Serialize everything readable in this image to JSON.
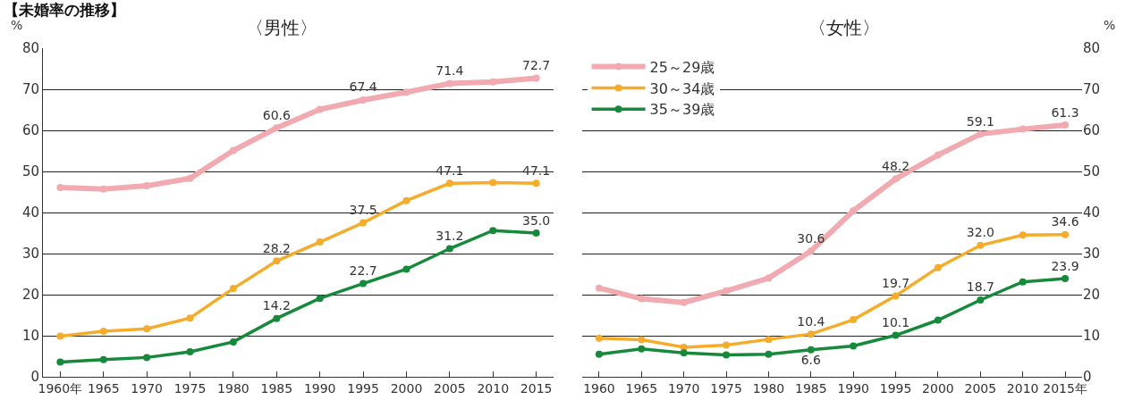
{
  "chart_data": [
    {
      "type": "line",
      "title": "〈男性〉",
      "annotations": [
        "【未婚率の推移】"
      ],
      "ylabel": "%",
      "x": [
        1960,
        1965,
        1970,
        1975,
        1980,
        1985,
        1990,
        1995,
        2000,
        2005,
        2010,
        2015
      ],
      "xlim": [
        1958,
        2017
      ],
      "xticks": [
        {
          "value": 1960,
          "label": "1960年"
        },
        1965,
        1970,
        1975,
        1980,
        1985,
        1990,
        1995,
        2000,
        2005,
        2010,
        2015
      ],
      "ylim": [
        0,
        80
      ],
      "yticks": [
        0,
        10,
        20,
        30,
        40,
        50,
        60,
        70,
        80
      ],
      "grid": "y",
      "marker": "circle",
      "line_style": "solid",
      "legend": false,
      "series": [
        {
          "color": "#f0aab0",
          "values": [
            46.1,
            45.7,
            46.5,
            48.3,
            55.1,
            60.6,
            65.1,
            67.4,
            69.3,
            71.4,
            71.8,
            72.7
          ],
          "value_labels": [
            null,
            null,
            null,
            null,
            null,
            "60.6",
            null,
            "67.4",
            null,
            "71.4",
            null,
            "72.7"
          ]
        },
        {
          "color": "#f5ac2a",
          "values": [
            9.9,
            11.1,
            11.7,
            14.3,
            21.5,
            28.2,
            32.8,
            37.5,
            42.9,
            47.1,
            47.3,
            47.1
          ],
          "value_labels": [
            null,
            null,
            null,
            null,
            null,
            "28.2",
            null,
            "37.5",
            null,
            "47.1",
            null,
            "47.1"
          ]
        },
        {
          "color": "#168a3a",
          "values": [
            3.6,
            4.2,
            4.7,
            6.1,
            8.5,
            14.2,
            19.1,
            22.7,
            26.2,
            31.2,
            35.6,
            35.0
          ],
          "value_labels": [
            null,
            null,
            null,
            null,
            null,
            "14.2",
            null,
            "22.7",
            null,
            "31.2",
            null,
            "35.0"
          ]
        }
      ]
    },
    {
      "type": "line",
      "title": "〈女性〉",
      "y2label": "%",
      "x": [
        1960,
        1965,
        1970,
        1975,
        1980,
        1985,
        1990,
        1995,
        2000,
        2005,
        2010,
        2015
      ],
      "xlim": [
        1958,
        2017
      ],
      "xticks": [
        1960,
        1965,
        1970,
        1975,
        1980,
        1985,
        1990,
        1995,
        2000,
        2005,
        2010,
        {
          "value": 2015,
          "label": "2015年"
        }
      ],
      "y2lim": [
        0,
        80
      ],
      "y2ticks": [
        0,
        10,
        20,
        30,
        40,
        50,
        60,
        70,
        80
      ],
      "grid": "y",
      "marker": "circle",
      "line_style": "solid",
      "legend": "top left",
      "series": [
        {
          "name": "25～29歳",
          "axis": "y2",
          "color": "#f0aab0",
          "values": [
            21.6,
            19.0,
            18.1,
            20.9,
            24.0,
            30.6,
            40.4,
            48.2,
            54.0,
            59.1,
            60.3,
            61.3
          ],
          "value_labels": [
            null,
            null,
            null,
            null,
            null,
            "30.6",
            null,
            "48.2",
            null,
            "59.1",
            null,
            "61.3"
          ]
        },
        {
          "name": "30～34歳",
          "axis": "y2",
          "color": "#f5ac2a",
          "values": [
            9.4,
            9.0,
            7.2,
            7.7,
            9.1,
            10.4,
            13.9,
            19.7,
            26.6,
            32.0,
            34.5,
            34.6
          ],
          "value_labels": [
            null,
            null,
            null,
            null,
            null,
            "10.4",
            null,
            "19.7",
            null,
            "32.0",
            null,
            "34.6"
          ]
        },
        {
          "name": "35～39歳",
          "axis": "y2",
          "color": "#168a3a",
          "values": [
            5.5,
            6.8,
            5.8,
            5.3,
            5.5,
            6.6,
            7.5,
            10.1,
            13.8,
            18.7,
            23.1,
            23.9
          ],
          "value_labels": [
            null,
            null,
            null,
            null,
            null,
            "6.6",
            null,
            "10.1",
            null,
            "18.7",
            null,
            "23.9"
          ]
        }
      ]
    }
  ]
}
